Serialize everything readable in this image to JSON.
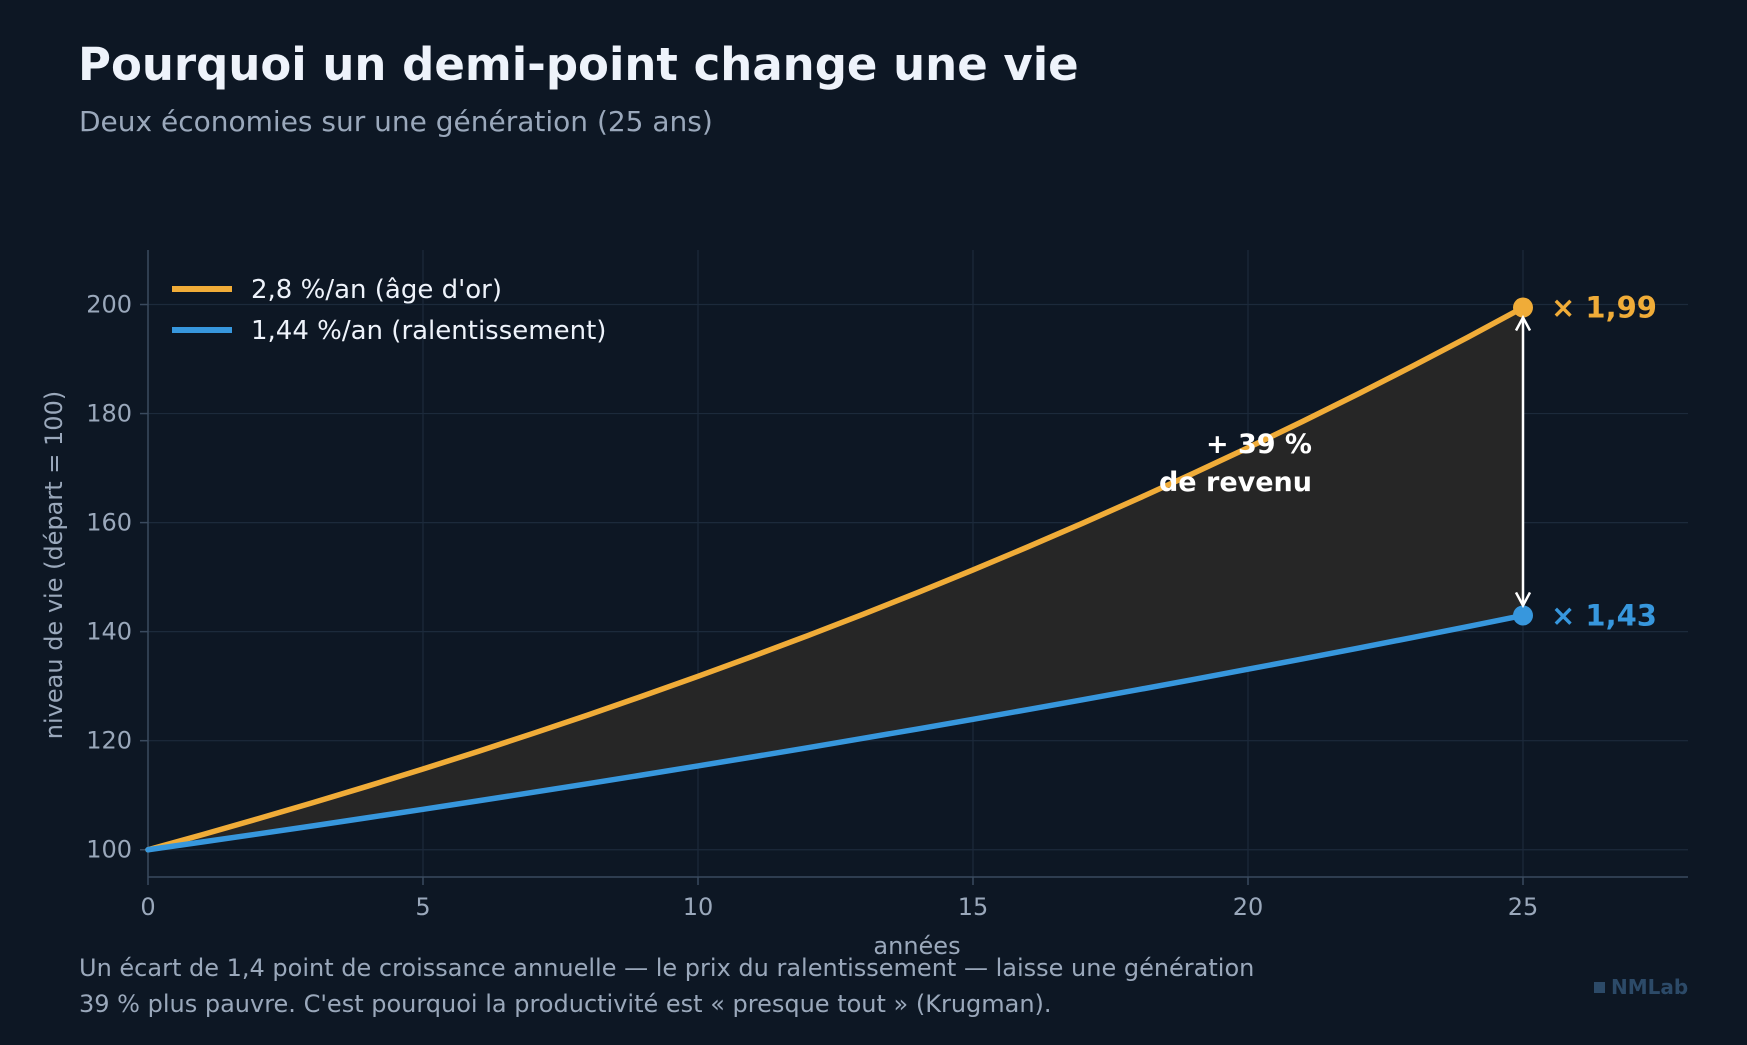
{
  "header": {
    "title": "Pourquoi un demi-point change une vie",
    "subtitle": "Deux économies sur une génération (25 ans)"
  },
  "footnote": {
    "line1": "Un écart de 1,4 point de croissance annuelle — le prix du ralentissement — laisse une génération",
    "line2": "39 % plus pauvre. C'est pourquoi la productivité est « presque tout » (Krugman)."
  },
  "brand": {
    "label": "NMLab"
  },
  "chart_data": {
    "type": "line",
    "xlabel": "années",
    "ylabel": "niveau de vie (départ = 100)",
    "xlim": [
      0,
      28
    ],
    "ylim": [
      95,
      210
    ],
    "x_ticks": [
      0,
      5,
      10,
      15,
      20,
      25
    ],
    "y_ticks": [
      100,
      120,
      140,
      160,
      180,
      200
    ],
    "grid": true,
    "legend_position": "top-left",
    "x": [
      0,
      1,
      2,
      3,
      4,
      5,
      6,
      7,
      8,
      9,
      10,
      11,
      12,
      13,
      14,
      15,
      16,
      17,
      18,
      19,
      20,
      21,
      22,
      23,
      24,
      25
    ],
    "series": [
      {
        "name": "2,8 %/an (âge d'or)",
        "color": "#f0ac38",
        "values": [
          100.0,
          102.8,
          105.68,
          108.64,
          111.68,
          114.81,
          118.02,
          121.33,
          124.72,
          128.22,
          131.81,
          135.5,
          139.29,
          143.19,
          147.2,
          151.32,
          155.56,
          159.92,
          164.39,
          169.0,
          173.73,
          178.59,
          183.59,
          188.73,
          194.02,
          199.45
        ],
        "end_label": "× 1,99"
      },
      {
        "name": "1,44 %/an (ralentissement)",
        "color": "#3797dd",
        "values": [
          100.0,
          101.44,
          102.9,
          104.38,
          105.89,
          107.41,
          108.96,
          110.53,
          112.12,
          113.73,
          115.37,
          117.03,
          118.72,
          120.43,
          122.16,
          123.92,
          125.71,
          127.52,
          129.35,
          131.22,
          133.11,
          135.02,
          136.97,
          138.94,
          140.94,
          142.97
        ],
        "end_label": "× 1,43"
      }
    ],
    "gap_fill_color": "#262626",
    "annotation": {
      "line1": "+ 39 %",
      "line2": "de revenu",
      "x": 25,
      "from": 142.97,
      "to": 199.45
    }
  }
}
